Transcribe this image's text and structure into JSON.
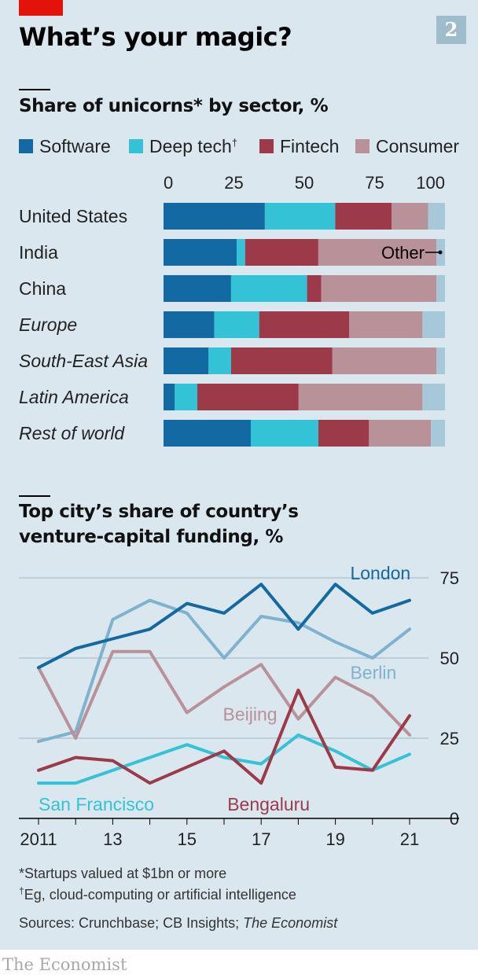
{
  "header": {
    "title": "What’s your magic?",
    "badge": "2"
  },
  "chart_data": [
    {
      "type": "bar",
      "stacked": true,
      "orientation": "horizontal",
      "title": "Share of unicorns* by sector, %",
      "xlim": [
        0,
        100
      ],
      "xticks": [
        "0",
        "25",
        "50",
        "75",
        "100"
      ],
      "categories": [
        "United States",
        "India",
        "China",
        "Europe",
        "South-East Asia",
        "Latin America",
        "Rest of world"
      ],
      "category_italic": [
        false,
        false,
        false,
        true,
        true,
        true,
        true
      ],
      "legend_position": "top",
      "series": [
        {
          "name": "Software",
          "color": "#1369a1",
          "values": [
            36,
            26,
            24,
            18,
            16,
            4,
            31
          ]
        },
        {
          "name": "Deep tech",
          "name_suffix": "†",
          "color": "#33c2d6",
          "values": [
            25,
            3,
            27,
            16,
            8,
            8,
            24
          ]
        },
        {
          "name": "Fintech",
          "color": "#9c3a4a",
          "values": [
            20,
            26,
            5,
            32,
            36,
            36,
            18
          ]
        },
        {
          "name": "Consumer",
          "color": "#b89199",
          "values": [
            13,
            42,
            41,
            26,
            37,
            44,
            22
          ]
        },
        {
          "name": "",
          "color": "#a6c8d9",
          "values": [
            6,
            3,
            3,
            8,
            3,
            8,
            5
          ]
        }
      ],
      "annotation": {
        "text": "Other",
        "category": "India"
      }
    },
    {
      "type": "line",
      "title": "Top city’s share of country’s venture-capital funding, %",
      "x": [
        2011,
        2012,
        2013,
        2014,
        2015,
        2016,
        2017,
        2018,
        2019,
        2020,
        2021
      ],
      "xticks": [
        "2011",
        "13",
        "15",
        "17",
        "19",
        "21"
      ],
      "ylim": [
        0,
        75
      ],
      "yticks": [
        "0",
        "25",
        "50",
        "75"
      ],
      "grid": true,
      "series": [
        {
          "name": "London",
          "color": "#1369a1",
          "values": [
            47,
            53,
            56,
            59,
            67,
            64,
            73,
            59,
            73,
            64,
            68
          ]
        },
        {
          "name": "Berlin",
          "color": "#7fb2cf",
          "values": [
            24,
            27,
            62,
            68,
            64,
            50,
            63,
            61,
            55,
            50,
            59
          ]
        },
        {
          "name": "Beijing",
          "color": "#b89199",
          "values": [
            47,
            25,
            52,
            52,
            33,
            41,
            48,
            31,
            44,
            38,
            26
          ]
        },
        {
          "name": "San Francisco",
          "color": "#33c2d6",
          "values": [
            11,
            11,
            15,
            19,
            23,
            19,
            17,
            26,
            21,
            15,
            20
          ]
        },
        {
          "name": "Bengaluru",
          "color": "#9c3a4a",
          "values": [
            15,
            19,
            18,
            11,
            16,
            21,
            11,
            40,
            16,
            15,
            32
          ]
        }
      ]
    }
  ],
  "footnotes": {
    "note1": "*Startups valued at $1bn or more",
    "note2_mark": "†",
    "note2": "Eg, cloud-computing or artificial intelligence",
    "sources": "Sources: Crunchbase; CB Insights; ",
    "sources_italic": "The Economist"
  },
  "logo": "The Economist"
}
